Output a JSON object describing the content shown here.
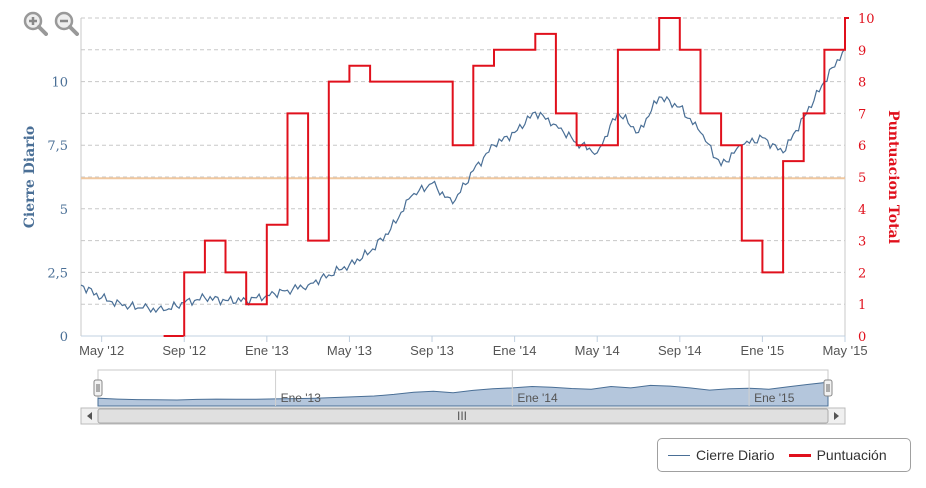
{
  "chart_data": {
    "type": "line",
    "x_ticks": [
      "May '12",
      "Sep '12",
      "Ene '13",
      "May '13",
      "Sep '13",
      "Ene '14",
      "May '14",
      "Sep '14",
      "Ene '15",
      "May '15"
    ],
    "x_range": [
      "2012-04",
      "2015-05"
    ],
    "y_left": {
      "label": "Cierre Diario",
      "ticks": [
        "0",
        "2,5",
        "5",
        "7,5",
        "10"
      ],
      "range": [
        0,
        12.5
      ]
    },
    "y_right": {
      "label": "Puntuacion Total",
      "ticks": [
        "0",
        "1",
        "2",
        "3",
        "4",
        "5",
        "6",
        "7",
        "8",
        "9",
        "10"
      ],
      "range": [
        0,
        10
      ]
    },
    "series": [
      {
        "name": "Cierre Diario",
        "axis": "left",
        "color": "#4a6f96",
        "x": [
          "2012-04",
          "2012-05",
          "2012-06",
          "2012-07",
          "2012-08",
          "2012-09",
          "2012-10",
          "2012-11",
          "2012-12",
          "2013-01",
          "2013-02",
          "2013-03",
          "2013-04",
          "2013-05",
          "2013-06",
          "2013-07",
          "2013-08",
          "2013-09",
          "2013-10",
          "2013-11",
          "2013-12",
          "2014-01",
          "2014-02",
          "2014-03",
          "2014-04",
          "2014-05",
          "2014-06",
          "2014-07",
          "2014-08",
          "2014-09",
          "2014-10",
          "2014-11",
          "2014-12",
          "2015-01",
          "2015-02",
          "2015-03",
          "2015-04",
          "2015-05"
        ],
        "values": [
          2.0,
          1.5,
          1.2,
          1.1,
          1.0,
          1.3,
          1.5,
          1.4,
          1.4,
          1.6,
          1.8,
          2.0,
          2.4,
          2.8,
          3.3,
          4.2,
          5.5,
          6.0,
          5.2,
          6.5,
          7.5,
          8.0,
          8.8,
          8.3,
          7.6,
          7.2,
          8.8,
          8.0,
          9.4,
          9.0,
          8.0,
          6.7,
          7.5,
          7.8,
          7.2,
          8.6,
          10.0,
          11.3
        ]
      },
      {
        "name": "Puntuación",
        "axis": "right",
        "color": "#e0101c",
        "x": [
          "2012-08",
          "2012-09",
          "2012-10",
          "2012-11",
          "2012-12",
          "2013-01",
          "2013-02",
          "2013-03",
          "2013-04",
          "2013-05",
          "2013-06",
          "2013-07",
          "2013-08",
          "2013-09",
          "2013-10",
          "2013-11",
          "2013-12",
          "2014-01",
          "2014-02",
          "2014-03",
          "2014-04",
          "2014-05",
          "2014-06",
          "2014-07",
          "2014-08",
          "2014-09",
          "2014-10",
          "2014-11",
          "2014-12",
          "2015-01",
          "2015-02",
          "2015-03",
          "2015-04",
          "2015-05"
        ],
        "values": [
          0,
          2,
          3,
          2,
          1,
          3.5,
          7,
          3,
          8,
          8.5,
          8,
          8,
          8,
          8,
          6,
          8.5,
          9,
          9,
          9.5,
          7,
          6,
          6,
          9,
          9,
          10,
          9,
          7,
          6,
          3,
          2,
          5.5,
          7,
          9,
          10
        ]
      }
    ],
    "reference_line": {
      "axis": "left",
      "value": 6.2,
      "color": "#f0c8a0"
    },
    "navigator_ticks": [
      "Ene '13",
      "Ene '14",
      "Ene '15"
    ],
    "grid": true,
    "legend_position": "bottom-right"
  },
  "legend": [
    {
      "label": "Cierre Diario",
      "color": "#4a6f96"
    },
    {
      "label": "Puntuación",
      "color": "#e0101c"
    }
  ],
  "icons": {
    "zoom_in": "zoom-in-icon",
    "zoom_out": "zoom-out-icon"
  },
  "scrollbar": {
    "grip": "III"
  }
}
